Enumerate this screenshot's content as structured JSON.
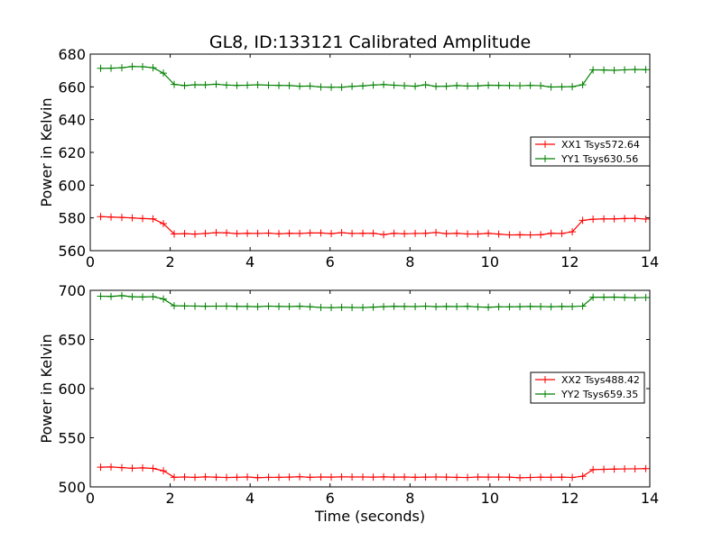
{
  "title": "GL8, ID:133121 Calibrated Amplitude",
  "chart_data": [
    {
      "type": "line",
      "xlabel": "",
      "ylabel": "Power in Kelvin",
      "xlim": [
        0,
        14
      ],
      "ylim": [
        560,
        680
      ],
      "xticks": [
        0,
        2,
        4,
        6,
        8,
        10,
        12,
        14
      ],
      "yticks": [
        560,
        580,
        600,
        620,
        640,
        660,
        680
      ],
      "legend_position": "right",
      "x": [
        0.26,
        0.52,
        0.79,
        1.05,
        1.31,
        1.57,
        1.83,
        2.1,
        2.36,
        2.62,
        2.88,
        3.15,
        3.41,
        3.67,
        3.93,
        4.19,
        4.46,
        4.72,
        4.98,
        5.24,
        5.5,
        5.77,
        6.03,
        6.29,
        6.55,
        6.82,
        7.08,
        7.34,
        7.6,
        7.86,
        8.13,
        8.39,
        8.65,
        8.91,
        9.17,
        9.44,
        9.7,
        9.96,
        10.22,
        10.49,
        10.75,
        11.01,
        11.27,
        11.53,
        11.8,
        12.06,
        12.32,
        12.58,
        12.85,
        13.11,
        13.37,
        13.63,
        13.9
      ],
      "series": [
        {
          "name": "XX1 Tsys572.64",
          "color": "#ff0000",
          "values": [
            580.8,
            580.5,
            580.3,
            580.0,
            579.6,
            579.4,
            576.5,
            570.2,
            570.4,
            570.1,
            570.5,
            571.0,
            570.9,
            570.4,
            570.6,
            570.5,
            570.7,
            570.3,
            570.6,
            570.5,
            570.8,
            570.8,
            570.4,
            571.0,
            570.5,
            570.6,
            570.6,
            569.8,
            570.6,
            570.3,
            570.5,
            570.6,
            571.1,
            570.4,
            570.6,
            570.2,
            570.2,
            570.6,
            570.1,
            569.6,
            569.7,
            569.6,
            569.7,
            570.6,
            570.5,
            571.5,
            578.5,
            579.2,
            579.4,
            579.4,
            579.6,
            579.7,
            579.3
          ]
        },
        {
          "name": "YY1 Tsys630.56",
          "color": "#008000",
          "values": [
            671.3,
            671.4,
            671.7,
            672.4,
            672.3,
            671.7,
            668.4,
            661.5,
            660.8,
            661.3,
            661.2,
            661.6,
            661.1,
            660.9,
            661.0,
            661.3,
            661.0,
            660.9,
            660.8,
            660.4,
            660.5,
            659.9,
            659.8,
            659.8,
            660.3,
            660.6,
            661.1,
            661.4,
            661.0,
            660.7,
            660.4,
            661.3,
            660.3,
            660.4,
            660.8,
            660.5,
            660.6,
            661.0,
            660.9,
            660.8,
            660.7,
            660.9,
            660.7,
            659.9,
            660.0,
            660.1,
            661.3,
            670.4,
            670.3,
            670.1,
            670.4,
            670.6,
            670.5
          ]
        }
      ]
    },
    {
      "type": "line",
      "xlabel": "Time (seconds)",
      "ylabel": "Power in Kelvin",
      "xlim": [
        0,
        14
      ],
      "ylim": [
        500,
        700
      ],
      "xticks": [
        0,
        2,
        4,
        6,
        8,
        10,
        12,
        14
      ],
      "yticks": [
        500,
        550,
        600,
        650,
        700
      ],
      "legend_position": "right",
      "x": [
        0.26,
        0.52,
        0.79,
        1.05,
        1.31,
        1.57,
        1.83,
        2.1,
        2.36,
        2.62,
        2.88,
        3.15,
        3.41,
        3.67,
        3.93,
        4.19,
        4.46,
        4.72,
        4.98,
        5.24,
        5.5,
        5.77,
        6.03,
        6.29,
        6.55,
        6.82,
        7.08,
        7.34,
        7.6,
        7.86,
        8.13,
        8.39,
        8.65,
        8.91,
        9.17,
        9.44,
        9.7,
        9.96,
        10.22,
        10.49,
        10.75,
        11.01,
        11.27,
        11.53,
        11.8,
        12.06,
        12.32,
        12.58,
        12.85,
        13.11,
        13.37,
        13.63,
        13.9
      ],
      "series": [
        {
          "name": "XX2 Tsys488.42",
          "color": "#ff0000",
          "values": [
            520.1,
            520.3,
            519.6,
            519.0,
            519.4,
            518.8,
            516.4,
            509.8,
            510.1,
            509.7,
            510.2,
            509.9,
            509.6,
            509.8,
            510.1,
            509.4,
            509.7,
            509.8,
            510.0,
            510.3,
            509.8,
            510.1,
            510.0,
            510.2,
            510.1,
            510.1,
            510.0,
            510.2,
            510.0,
            510.1,
            509.8,
            510.0,
            510.1,
            510.0,
            509.7,
            509.6,
            510.1,
            510.0,
            510.0,
            509.9,
            509.3,
            509.6,
            509.9,
            509.8,
            510.0,
            509.6,
            510.8,
            517.6,
            517.9,
            518.1,
            518.3,
            518.4,
            518.6
          ]
        },
        {
          "name": "YY2 Tsys659.35",
          "color": "#008000",
          "values": [
            694.0,
            693.8,
            694.6,
            693.5,
            693.2,
            693.6,
            691.2,
            684.3,
            684.1,
            684.0,
            683.8,
            683.9,
            684.0,
            683.7,
            683.6,
            683.4,
            683.9,
            683.6,
            683.5,
            683.8,
            683.3,
            682.6,
            682.4,
            682.7,
            682.6,
            682.5,
            682.9,
            683.4,
            683.7,
            683.6,
            683.5,
            683.9,
            683.4,
            683.6,
            683.5,
            683.7,
            683.1,
            682.8,
            683.2,
            683.2,
            683.4,
            683.6,
            683.5,
            683.3,
            683.6,
            683.5,
            684.0,
            693.0,
            693.0,
            693.1,
            692.8,
            692.5,
            692.7
          ]
        }
      ]
    }
  ]
}
